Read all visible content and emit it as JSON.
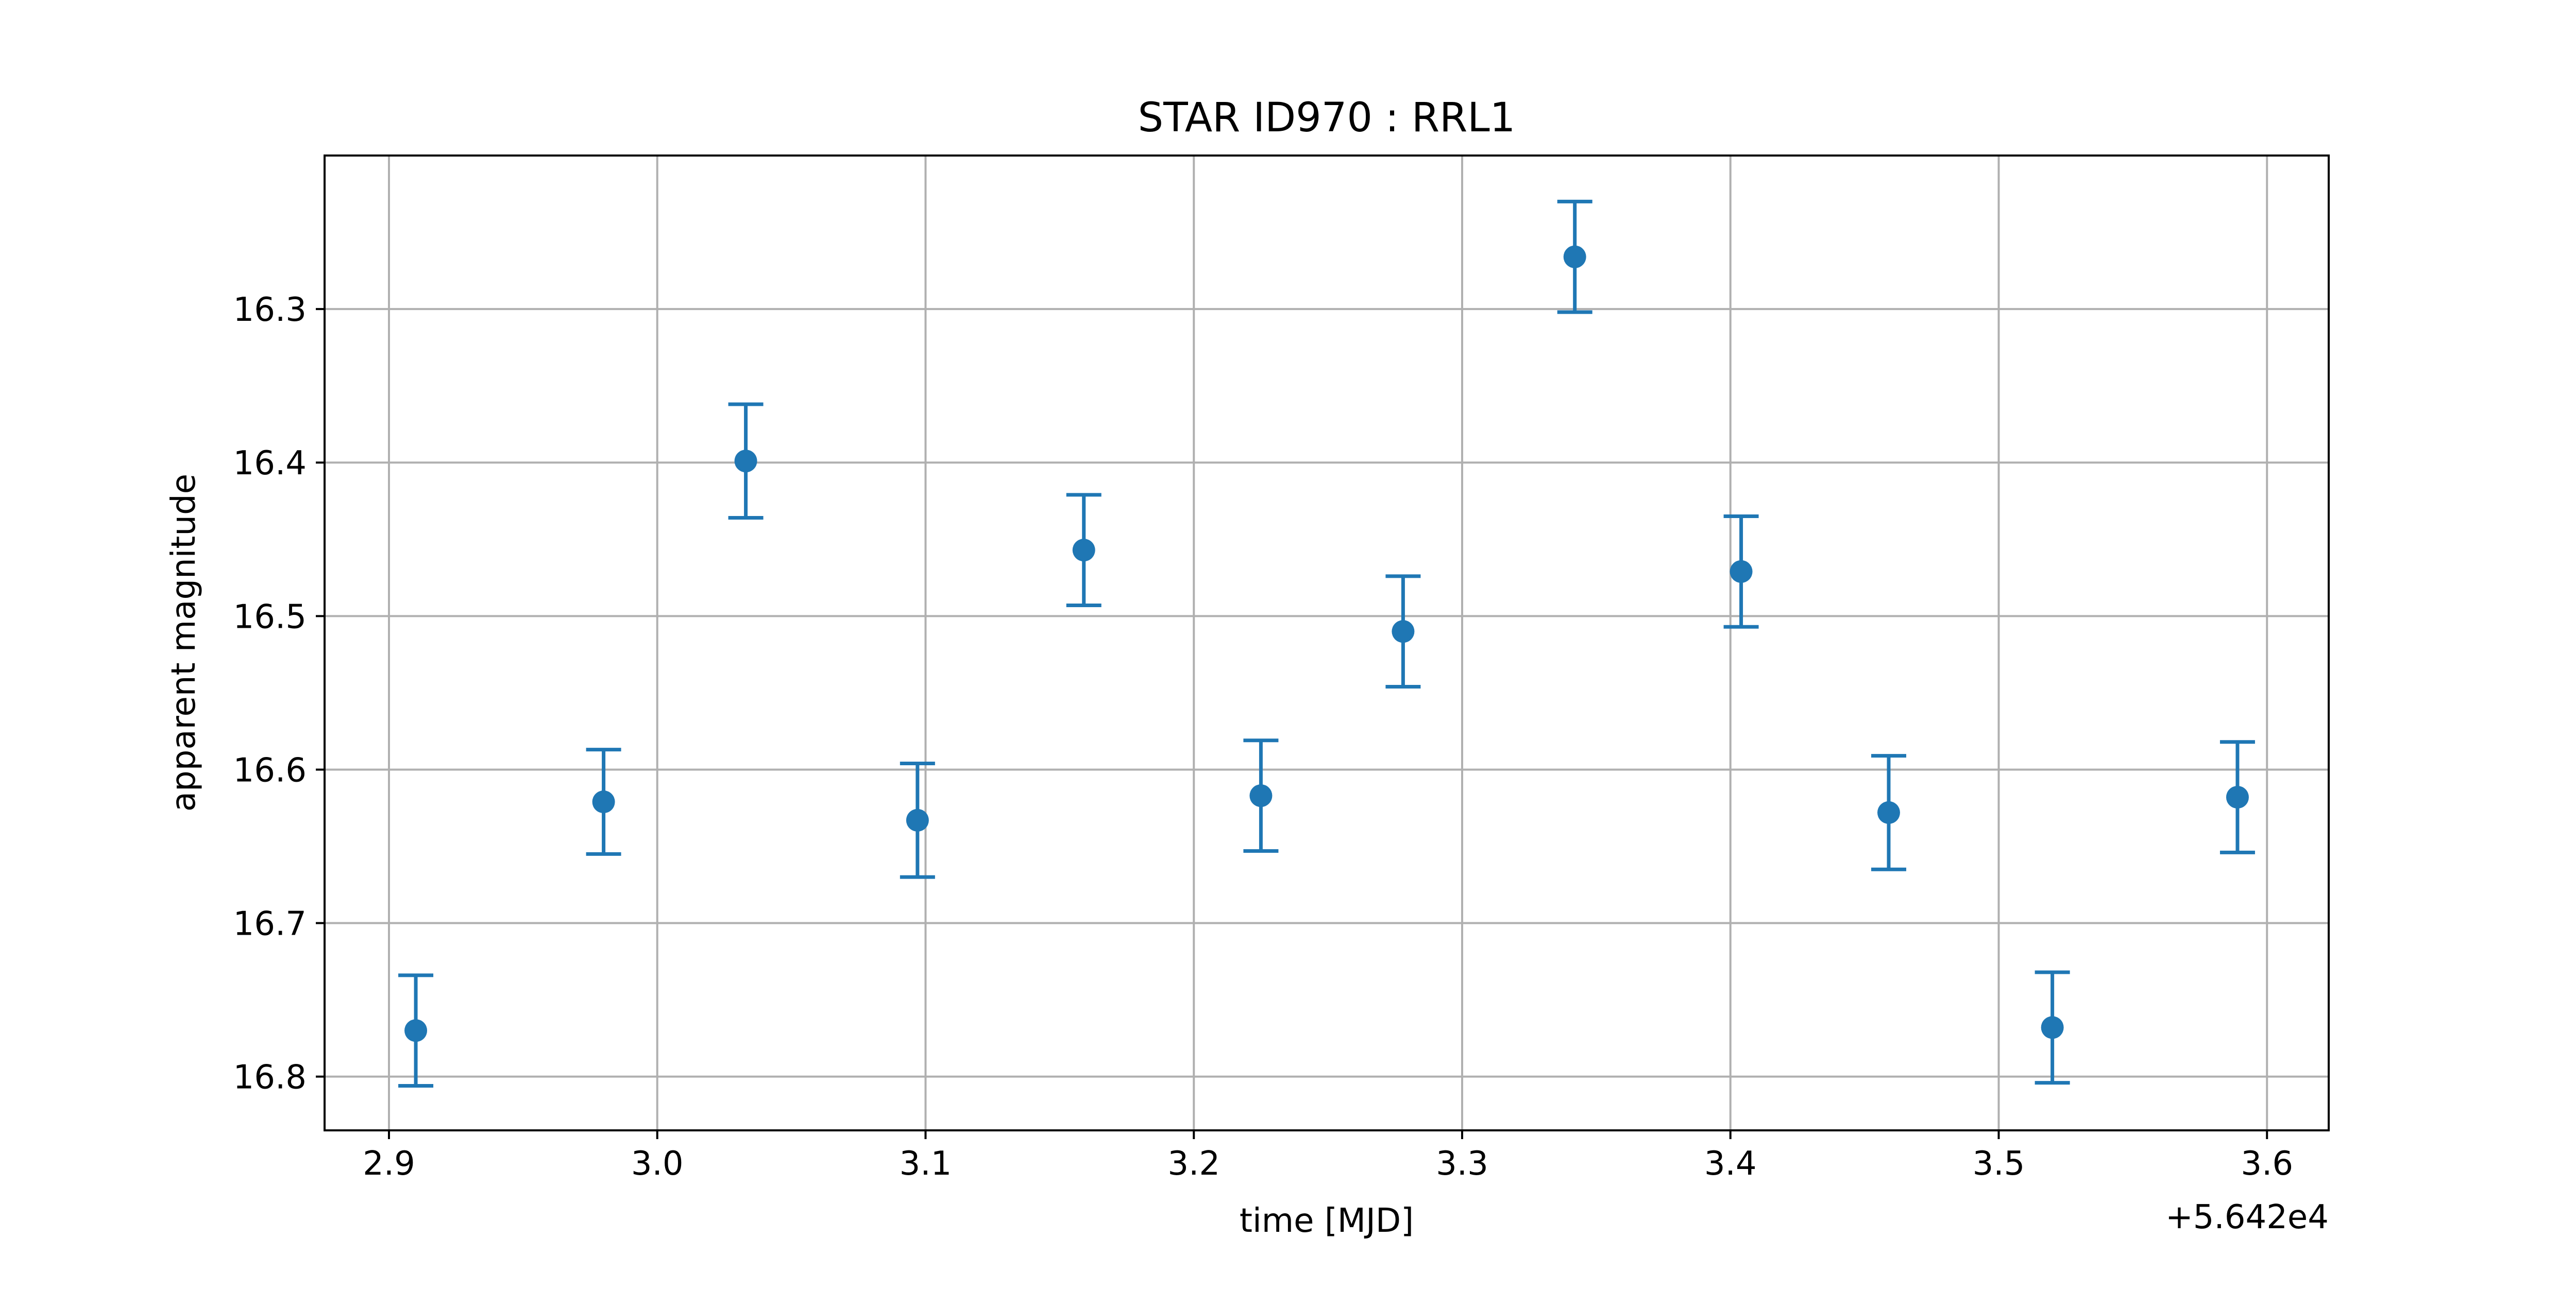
{
  "chart_data": {
    "type": "scatter",
    "title": "STAR ID970 : RRL1",
    "xlabel": "time [MJD]",
    "ylabel": "apparent magnitude",
    "x_offset_label": "+5.642e4",
    "xlim": [
      2.876,
      3.623
    ],
    "ylim": [
      16.835,
      16.2
    ],
    "y_inverted": true,
    "grid": true,
    "x_ticks": [
      2.9,
      3.0,
      3.1,
      3.2,
      3.3,
      3.4,
      3.5,
      3.6
    ],
    "x_tick_labels": [
      "2.9",
      "3.0",
      "3.1",
      "3.2",
      "3.3",
      "3.4",
      "3.5",
      "3.6"
    ],
    "y_ticks": [
      16.3,
      16.4,
      16.5,
      16.6,
      16.7,
      16.8
    ],
    "y_tick_labels": [
      "16.3",
      "16.4",
      "16.5",
      "16.6",
      "16.7",
      "16.8"
    ],
    "color": "#1f77b4",
    "series": [
      {
        "x": [
          2.91,
          2.98,
          3.033,
          3.097,
          3.159,
          3.225,
          3.278,
          3.342,
          3.404,
          3.459,
          3.52,
          3.589
        ],
        "y": [
          16.77,
          16.621,
          16.399,
          16.633,
          16.457,
          16.617,
          16.51,
          16.266,
          16.471,
          16.628,
          16.768,
          16.618
        ],
        "yerr": [
          0.036,
          0.034,
          0.037,
          0.037,
          0.036,
          0.036,
          0.036,
          0.036,
          0.036,
          0.037,
          0.036,
          0.036
        ]
      }
    ]
  }
}
